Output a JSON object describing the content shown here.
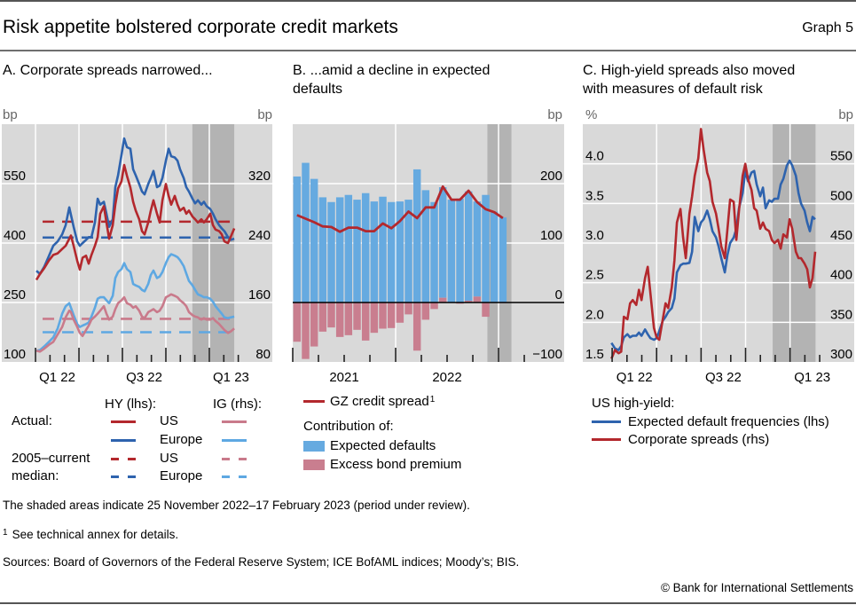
{
  "header": {
    "title": "Risk appetite bolstered corporate credit markets",
    "graph_label": "Graph 5"
  },
  "chart_data": [
    {
      "id": "A",
      "type": "line",
      "title_lines": [
        "A. Corporate spreads narrowed..."
      ],
      "x_unit": "months since January 2022",
      "xlim": [
        -2.33,
        16.35
      ],
      "x_ticks": {
        "minor": [
          0,
          1,
          2,
          3,
          4,
          5,
          6,
          7,
          8,
          9,
          10,
          11,
          12,
          13,
          14
        ],
        "major": [
          0,
          3,
          6,
          9,
          12
        ]
      },
      "x_tick_labels": [
        {
          "label": "Q1 22",
          "at": 1.5
        },
        {
          "label": "Q3 22",
          "at": 7.5
        },
        {
          "label": "Q1 23",
          "at": 13.5
        }
      ],
      "y_left": {
        "unit": "bp",
        "lim": [
          100,
          700
        ],
        "ticks": [
          100,
          250,
          400,
          550
        ],
        "tick_labels": [
          "100",
          "250",
          "400",
          "550"
        ]
      },
      "y_right": {
        "unit": "bp",
        "lim": [
          80,
          400
        ],
        "ticks": [
          80,
          160,
          240,
          320
        ],
        "tick_labels": [
          "80",
          "160",
          "240",
          "320"
        ]
      },
      "grid": true,
      "shaded_period": [
        10.83,
        13.72
      ],
      "x": [
        0.06,
        0.31,
        0.61,
        0.92,
        1.22,
        1.53,
        1.84,
        2.08,
        2.33,
        2.45,
        2.63,
        2.88,
        3.06,
        3.25,
        3.49,
        3.67,
        3.86,
        4.1,
        4.29,
        4.47,
        4.72,
        4.9,
        5.08,
        5.33,
        5.51,
        5.7,
        5.94,
        6.12,
        6.31,
        6.55,
        6.74,
        6.92,
        7.16,
        7.35,
        7.53,
        7.78,
        7.96,
        8.14,
        8.39,
        8.57,
        8.76,
        9.0,
        9.19,
        9.37,
        9.61,
        9.8,
        9.98,
        10.23,
        10.41,
        10.59,
        10.84,
        11.02,
        11.21,
        11.45,
        11.63,
        11.82,
        12.06,
        12.25,
        12.43,
        12.68,
        12.86,
        13.04,
        13.29,
        13.47,
        13.72
      ],
      "series": [
        {
          "name": "HY US (actual)",
          "axis": "left",
          "color": "#b3282d",
          "values": [
            307,
            322,
            337,
            356,
            370,
            374,
            385,
            393,
            411,
            419,
            393,
            355,
            333,
            363,
            368,
            348,
            370,
            393,
            415,
            474,
            493,
            452,
            411,
            445,
            497,
            538,
            556,
            597,
            570,
            540,
            504,
            482,
            460,
            430,
            422,
            452,
            482,
            508,
            474,
            452,
            508,
            549,
            519,
            497,
            519,
            497,
            482,
            489,
            474,
            482,
            467,
            460,
            452,
            460,
            452,
            460,
            474,
            445,
            434,
            430,
            422,
            404,
            400,
            415,
            437
          ]
        },
        {
          "name": "HY Europe (actual)",
          "axis": "left",
          "color": "#2e63ae",
          "values": [
            330,
            322,
            341,
            367,
            393,
            404,
            422,
            445,
            490,
            471,
            441,
            404,
            393,
            400,
            408,
            415,
            415,
            452,
            512,
            497,
            504,
            474,
            441,
            460,
            541,
            571,
            623,
            664,
            642,
            638,
            586,
            571,
            549,
            530,
            523,
            549,
            564,
            582,
            541,
            545,
            564,
            608,
            638,
            619,
            616,
            608,
            586,
            564,
            541,
            530,
            512,
            500,
            508,
            497,
            504,
            493,
            486,
            474,
            460,
            445,
            437,
            430,
            415,
            408,
            411
          ]
        },
        {
          "name": "IG US (actual)",
          "axis": "right",
          "color": "#c97a8b",
          "values": [
            95,
            94,
            98,
            103,
            107,
            117,
            127,
            140,
            149,
            147,
            137,
            127,
            119,
            115,
            123,
            129,
            137,
            141,
            145,
            149,
            155,
            145,
            137,
            141,
            151,
            159,
            163,
            167,
            159,
            157,
            153,
            155,
            149,
            141,
            139,
            147,
            149,
            151,
            147,
            149,
            155,
            167,
            169,
            171,
            169,
            167,
            163,
            159,
            155,
            147,
            143,
            141,
            140,
            137,
            139,
            137,
            137,
            139,
            135,
            131,
            127,
            123,
            119,
            121,
            125
          ]
        },
        {
          "name": "IG Europe (actual)",
          "axis": "right",
          "color": "#5ea8e2",
          "values": [
            95,
            96,
            101,
            107,
            113,
            125,
            145,
            155,
            159,
            153,
            143,
            131,
            127,
            129,
            131,
            133,
            141,
            153,
            165,
            167,
            167,
            163,
            159,
            169,
            193,
            201,
            205,
            213,
            205,
            201,
            185,
            183,
            181,
            177,
            175,
            185,
            197,
            203,
            193,
            195,
            201,
            213,
            221,
            225,
            223,
            221,
            217,
            209,
            199,
            189,
            183,
            177,
            171,
            169,
            167,
            167,
            165,
            161,
            155,
            149,
            145,
            140,
            139,
            140,
            141
          ]
        }
      ],
      "medians": [
        {
          "name": "HY US 2005–current median",
          "axis": "left",
          "color": "#b3282d",
          "value": 454,
          "x_range": [
            0.49,
            13.78
          ]
        },
        {
          "name": "HY Europe 2005–current median",
          "axis": "left",
          "color": "#2e63ae",
          "value": 414,
          "x_range": [
            0.49,
            13.78
          ]
        },
        {
          "name": "IG US 2005–current median",
          "axis": "right",
          "color": "#c97a8b",
          "value": 138,
          "x_range": [
            0.49,
            13.78
          ]
        },
        {
          "name": "IG Europe 2005–current median",
          "axis": "right",
          "color": "#5ea8e2",
          "value": 120,
          "x_range": [
            0.49,
            13.78
          ]
        }
      ],
      "legend": {
        "hy_header": "HY (lhs):",
        "ig_header": "IG (rhs):",
        "actual_label": "Actual:",
        "median_label_line1": "2005–current",
        "median_label_line2": "median:",
        "rows": [
          "US",
          "Europe",
          "US",
          "Europe"
        ]
      }
    },
    {
      "id": "B",
      "type": "bar+line",
      "title_lines": [
        "B. ...amid a decline in expected",
        "defaults"
      ],
      "x_unit": "months since January 2021",
      "xlim": [
        0,
        31.65
      ],
      "categories": [
        "2021-01",
        "2021-02",
        "2021-03",
        "2021-04",
        "2021-05",
        "2021-06",
        "2021-07",
        "2021-08",
        "2021-09",
        "2021-10",
        "2021-11",
        "2021-12",
        "2022-01",
        "2022-02",
        "2022-03",
        "2022-04",
        "2022-05",
        "2022-06",
        "2022-07",
        "2022-08",
        "2022-09",
        "2022-10",
        "2022-11",
        "2022-12",
        "2023-01"
      ],
      "x_ticks": {
        "minor": [
          0,
          3,
          6,
          9,
          12,
          15,
          18,
          21,
          24,
          27
        ],
        "major": [
          0,
          12,
          24
        ]
      },
      "x_tick_labels": [
        {
          "label": "2021",
          "at": 6
        },
        {
          "label": "2022",
          "at": 18
        }
      ],
      "y_right": {
        "unit": "bp",
        "lim": [
          -100,
          300
        ],
        "ticks": [
          -100,
          0,
          100,
          200
        ],
        "tick_labels": [
          "−100",
          "0",
          "100",
          "200"
        ]
      },
      "grid": true,
      "shaded_period": [
        22.7,
        25.5
      ],
      "bars": [
        {
          "name": "Expected defaults",
          "color": "#66aae0",
          "values": [
            212,
            235,
            208,
            177,
            169,
            177,
            181,
            173,
            184,
            170,
            178,
            169,
            170,
            173,
            224,
            189,
            169,
            186,
            173,
            175,
            184,
            160,
            181,
            153,
            143
          ]
        },
        {
          "name": "Excess bond premium",
          "color": "#c97e8f",
          "values": [
            -66,
            -95,
            -74,
            -49,
            -42,
            -58,
            -55,
            -46,
            -64,
            -51,
            -44,
            -43,
            -34,
            -20,
            -81,
            -29,
            -11,
            8,
            0,
            -2,
            3,
            10,
            -24,
            0,
            -1
          ]
        }
      ],
      "line": {
        "name": "GZ credit spread",
        "color": "#b3282d",
        "values": [
          147,
          141,
          135,
          128,
          127,
          119,
          126,
          126,
          120,
          120,
          133,
          125,
          137,
          153,
          142,
          160,
          160,
          195,
          173,
          173,
          188,
          169,
          157,
          152,
          142
        ]
      },
      "legend": {
        "line_label": "GZ credit spread",
        "line_footnote": "1",
        "contribution_label": "Contribution of:",
        "bar_labels": [
          "Expected defaults",
          "Excess bond premium"
        ]
      }
    },
    {
      "id": "C",
      "type": "line",
      "title_lines": [
        "C. High-yield spreads also moved",
        "with measures of default risk"
      ],
      "x_unit": "months since January 2022",
      "xlim": [
        -1.98,
        16.33
      ],
      "x_ticks": {
        "minor": [
          0,
          1,
          2,
          3,
          4,
          5,
          6,
          7,
          8,
          9,
          10,
          11,
          12,
          13,
          14
        ],
        "major": [
          0,
          3,
          6,
          9,
          12
        ]
      },
      "x_tick_labels": [
        {
          "label": "Q1 22",
          "at": 1.5
        },
        {
          "label": "Q3 22",
          "at": 7.5
        },
        {
          "label": "Q1 23",
          "at": 13.5
        }
      ],
      "y_left": {
        "unit": "%",
        "lim": [
          1.5,
          4.5
        ],
        "ticks": [
          1.5,
          2.0,
          2.5,
          3.0,
          3.5,
          4.0
        ],
        "tick_labels": [
          "1.5",
          "2.0",
          "2.5",
          "3.0",
          "3.5",
          "4.0"
        ]
      },
      "y_right": {
        "unit": "bp",
        "lim": [
          300,
          600
        ],
        "ticks": [
          300,
          350,
          400,
          450,
          500,
          550
        ],
        "tick_labels": [
          "300",
          "350",
          "400",
          "450",
          "500",
          "550"
        ]
      },
      "grid": true,
      "shaded_period": [
        10.83,
        13.72
      ],
      "x": [
        -0.05,
        0.19,
        0.43,
        0.61,
        0.79,
        1.03,
        1.21,
        1.39,
        1.63,
        1.81,
        1.98,
        2.22,
        2.4,
        2.58,
        2.82,
        3.0,
        3.18,
        3.42,
        3.6,
        3.78,
        4.02,
        4.2,
        4.37,
        4.61,
        4.79,
        4.97,
        5.21,
        5.39,
        5.57,
        5.81,
        5.99,
        6.17,
        6.41,
        6.59,
        6.77,
        7.01,
        7.18,
        7.36,
        7.6,
        7.78,
        7.96,
        8.2,
        8.38,
        8.56,
        8.8,
        8.98,
        9.16,
        9.4,
        9.58,
        9.75,
        9.99,
        10.17,
        10.35,
        10.59,
        10.77,
        10.95,
        11.19,
        11.37,
        11.55,
        11.79,
        11.97,
        12.15,
        12.39,
        12.57,
        12.74,
        12.98,
        13.16,
        13.34,
        13.52,
        13.7
      ],
      "series": [
        {
          "name": "Expected default frequencies (lhs)",
          "axis": "left",
          "color": "#2e63ae",
          "values": [
            1.74,
            1.67,
            1.65,
            1.7,
            1.81,
            1.85,
            1.81,
            1.83,
            1.83,
            1.87,
            1.83,
            1.91,
            1.85,
            1.8,
            1.78,
            1.8,
            1.89,
            2.02,
            2.07,
            2.13,
            2.18,
            2.3,
            2.63,
            2.72,
            2.74,
            2.74,
            2.75,
            2.89,
            3.33,
            3.15,
            3.26,
            3.3,
            3.41,
            3.3,
            3.15,
            3.07,
            2.96,
            2.81,
            2.63,
            2.85,
            3.0,
            3.07,
            3.18,
            3.44,
            3.63,
            3.91,
            3.78,
            3.89,
            3.91,
            3.74,
            3.59,
            3.7,
            3.44,
            3.54,
            3.52,
            3.56,
            3.56,
            3.74,
            3.81,
            3.98,
            4.04,
            3.98,
            3.85,
            3.63,
            3.5,
            3.41,
            3.26,
            3.15,
            3.33,
            3.3
          ]
        },
        {
          "name": "Corporate spreads (rhs)",
          "axis": "right",
          "color": "#b3282d",
          "values": [
            304,
            315,
            311,
            313,
            357,
            354,
            374,
            378,
            372,
            391,
            378,
            406,
            420,
            387,
            343,
            331,
            328,
            354,
            374,
            368,
            394,
            428,
            476,
            493,
            457,
            431,
            487,
            509,
            535,
            557,
            594,
            568,
            539,
            528,
            502,
            487,
            468,
            446,
            431,
            468,
            505,
            502,
            454,
            491,
            535,
            550,
            531,
            517,
            494,
            491,
            468,
            476,
            468,
            465,
            454,
            450,
            454,
            443,
            461,
            457,
            480,
            468,
            439,
            431,
            431,
            424,
            417,
            394,
            406,
            439
          ]
        }
      ],
      "legend": {
        "header": "US high-yield:",
        "labels": [
          "Expected default frequencies (lhs)",
          "Corporate spreads (rhs)"
        ]
      }
    }
  ],
  "footer": {
    "note": "The shaded areas indicate 25 November 2022–17 February 2023 (period under review).",
    "footnote_marker": "1",
    "footnote_text": "See technical annex for details.",
    "sources": "Sources: Board of Governors of the Federal Reserve System; ICE BofAML indices; Moody’s; BIS.",
    "copyright": "© Bank for International Settlements"
  },
  "colors": {
    "plot_background": "#d9d9d9",
    "shaded_period": "#b3b3b3",
    "gridline": "#ffffff"
  }
}
